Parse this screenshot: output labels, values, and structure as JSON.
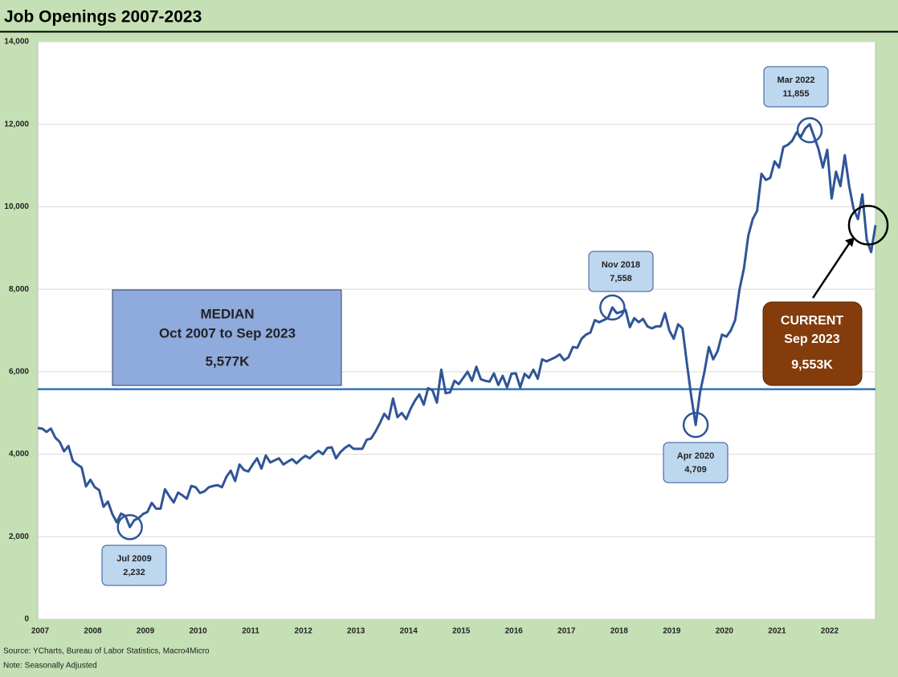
{
  "chart_data": {
    "type": "line",
    "title": "Job Openings 2007-2023",
    "categories": [
      "2007",
      null,
      null,
      null,
      null,
      null,
      null,
      null,
      null,
      null,
      null,
      null,
      "2008",
      null,
      null,
      null,
      null,
      null,
      null,
      null,
      null,
      null,
      null,
      null,
      "2009",
      null,
      null,
      null,
      null,
      null,
      null,
      null,
      null,
      null,
      null,
      null,
      "2010",
      null,
      null,
      null,
      null,
      null,
      null,
      null,
      null,
      null,
      null,
      null,
      "2011",
      null,
      null,
      null,
      null,
      null,
      null,
      null,
      null,
      null,
      null,
      null,
      "2012",
      null,
      null,
      null,
      null,
      null,
      null,
      null,
      null,
      null,
      null,
      null,
      "2013",
      null,
      null,
      null,
      null,
      null,
      null,
      null,
      null,
      null,
      null,
      null,
      "2014",
      null,
      null,
      null,
      null,
      null,
      null,
      null,
      null,
      null,
      null,
      null,
      "2015",
      null,
      null,
      null,
      null,
      null,
      null,
      null,
      null,
      null,
      null,
      null,
      "2016",
      null,
      null,
      null,
      null,
      null,
      null,
      null,
      null,
      null,
      null,
      null,
      "2017",
      null,
      null,
      null,
      null,
      null,
      null,
      null,
      null,
      null,
      null,
      null,
      "2018",
      null,
      null,
      null,
      null,
      null,
      null,
      null,
      null,
      null,
      null,
      null,
      "2019",
      null,
      null,
      null,
      null,
      null,
      null,
      null,
      null,
      null,
      null,
      null,
      "2020",
      null,
      null,
      null,
      null,
      null,
      null,
      null,
      null,
      null,
      null,
      null,
      "2021",
      null,
      null,
      null,
      null,
      null,
      null,
      null,
      null,
      null,
      null,
      null,
      "2022",
      null,
      null,
      null,
      null,
      null,
      null,
      null,
      null,
      null,
      null,
      null
    ],
    "values": [
      4634,
      4620,
      4540,
      4620,
      4400,
      4300,
      4070,
      4200,
      3836,
      3750,
      3680,
      3220,
      3380,
      3200,
      3130,
      2726,
      2850,
      2550,
      2350,
      2560,
      2500,
      2232,
      2400,
      2450,
      2550,
      2600,
      2820,
      2680,
      2680,
      3150,
      2980,
      2830,
      3070,
      3000,
      2920,
      3230,
      3200,
      3060,
      3100,
      3200,
      3230,
      3250,
      3200,
      3450,
      3600,
      3350,
      3750,
      3620,
      3580,
      3750,
      3900,
      3650,
      3970,
      3800,
      3850,
      3900,
      3750,
      3820,
      3880,
      3780,
      3880,
      3960,
      3900,
      4000,
      4080,
      4000,
      4150,
      4170,
      3900,
      4050,
      4150,
      4220,
      4130,
      4130,
      4130,
      4350,
      4380,
      4550,
      4750,
      4980,
      4850,
      5350,
      4900,
      5000,
      4850,
      5100,
      5300,
      5450,
      5200,
      5600,
      5550,
      5250,
      6050,
      5480,
      5500,
      5780,
      5700,
      5850,
      6000,
      5780,
      6120,
      5820,
      5780,
      5760,
      5960,
      5680,
      5900,
      5620,
      5950,
      5960,
      5620,
      5950,
      5850,
      6050,
      5830,
      6300,
      6250,
      6300,
      6350,
      6420,
      6280,
      6350,
      6600,
      6580,
      6800,
      6900,
      6950,
      7250,
      7200,
      7250,
      7300,
      7558,
      7420,
      7450,
      7500,
      7080,
      7300,
      7200,
      7280,
      7100,
      7050,
      7100,
      7100,
      7420,
      7000,
      6800,
      7150,
      7050,
      6200,
      5400,
      4709,
      5500,
      6000,
      6600,
      6300,
      6500,
      6900,
      6850,
      7000,
      7250,
      8000,
      8500,
      9300,
      9700,
      9900,
      10800,
      10650,
      10700,
      11100,
      10950,
      11450,
      11500,
      11600,
      11800,
      11700,
      11900,
      12000,
      11700,
      11400,
      10950,
      11380,
      10200,
      10850,
      10500,
      11250,
      10500,
      9950,
      9700,
      10300,
      9200,
      8900,
      9553
    ],
    "color": "#2f5597",
    "ylim": [
      0,
      14000
    ],
    "yticks": [
      0,
      {
        "value": 2000,
        "label": "2,000"
      },
      {
        "value": 4000,
        "label": "4,000"
      },
      {
        "value": 6000,
        "label": "6,000"
      },
      {
        "value": 8000,
        "label": "8,000"
      },
      {
        "value": 10000,
        "label": "10,000"
      },
      {
        "value": 12000,
        "label": "12,000"
      },
      {
        "value": 14000,
        "label": "14,000"
      }
    ],
    "grid": true,
    "median": {
      "value": 5577,
      "color": "#2e75b6",
      "lines": [
        "MEDIAN",
        "Oct 2007 to Sep 2023",
        "5,577K"
      ]
    },
    "annotations": [
      {
        "label": "Jul 2009",
        "value": 2232,
        "value_label": "2,232"
      },
      {
        "label": "Nov 2018",
        "value": 7558,
        "value_label": "7,558"
      },
      {
        "label": "Apr 2020",
        "value": 4709,
        "value_label": "4,709"
      },
      {
        "label": "Mar 2022",
        "value": 11855,
        "value_label": "11,855"
      }
    ],
    "current": {
      "value": 9553,
      "lines": [
        "CURRENT",
        "Sep 2023",
        "9,553K"
      ]
    },
    "source": "Source: YCharts, Bureau of Labor Statistics, Macro4Micro",
    "note": "Note: Seasonally Adjusted"
  }
}
